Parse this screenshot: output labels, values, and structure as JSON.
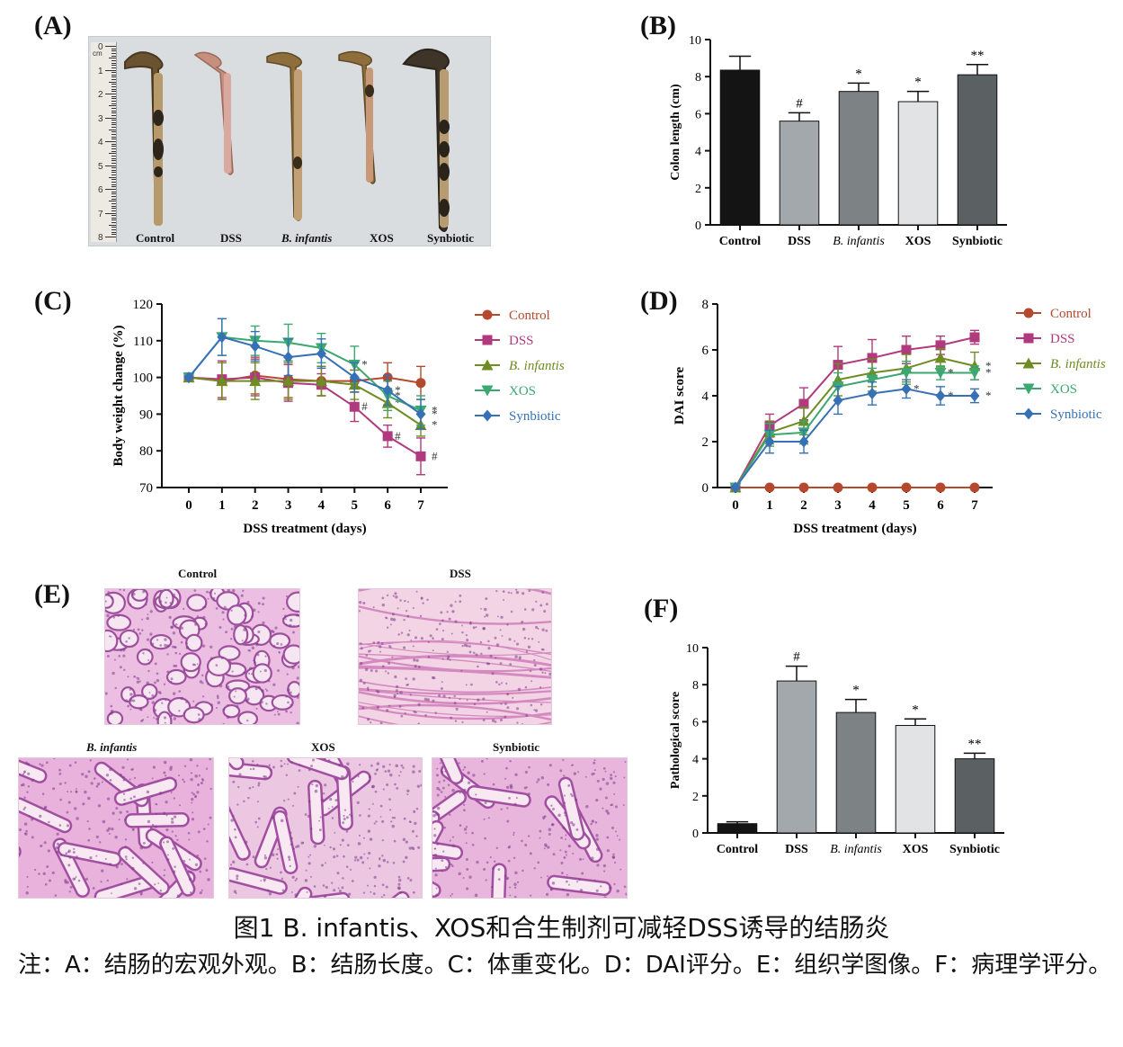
{
  "panel_letters": {
    "a": "(A)",
    "b": "(B)",
    "c": "(C)",
    "d": "(D)",
    "e": "(E)",
    "f": "(F)"
  },
  "photo": {
    "labels": [
      "Control",
      "DSS",
      "B. infantis",
      "XOS",
      "Synbiotic"
    ],
    "ruler_unit": "cm",
    "ruler_numbers": [
      "0",
      "1",
      "2",
      "3",
      "4",
      "5",
      "6",
      "7",
      "8"
    ]
  },
  "chart_data": [
    {
      "panel": "B",
      "type": "bar",
      "categories": [
        "Control",
        "DSS",
        "B. infantis",
        "XOS",
        "Synbiotic"
      ],
      "values": [
        8.35,
        5.6,
        7.2,
        6.65,
        8.1
      ],
      "errors": [
        0.75,
        0.45,
        0.45,
        0.55,
        0.55
      ],
      "annotations": [
        "",
        "#",
        "*",
        "*",
        "**"
      ],
      "bar_colors": [
        "#141414",
        "#a3a8ad",
        "#7d8285",
        "#e1e3e4",
        "#5b6163"
      ],
      "ylabel": "Colon length (cm)",
      "ylim": [
        0,
        10
      ],
      "yticks": [
        "0",
        "2",
        "4",
        "6",
        "8",
        "10"
      ]
    },
    {
      "panel": "C",
      "type": "line",
      "x": [
        0,
        1,
        2,
        3,
        4,
        5,
        6,
        7
      ],
      "xticks": [
        "0",
        "1",
        "2",
        "3",
        "4",
        "5",
        "6",
        "7"
      ],
      "xlabel": "DSS treatment  (days)",
      "ylabel": "Body weight change (%)",
      "ylim": [
        70,
        120
      ],
      "yticks": [
        "70",
        "80",
        "90",
        "100",
        "110",
        "120"
      ],
      "legend_position": "right",
      "series": [
        {
          "name": "Control",
          "color": "#b5492d",
          "marker": "circle",
          "values": [
            100,
            99,
            100.5,
            99.5,
            99,
            99,
            100,
            98.5
          ],
          "errors": [
            0,
            5,
            5,
            5,
            4,
            3,
            4,
            4.5
          ],
          "annotations": [
            "",
            "",
            "",
            "",
            "",
            "",
            "",
            ""
          ]
        },
        {
          "name": "DSS",
          "color": "#b03a7d",
          "marker": "square",
          "values": [
            100,
            99.5,
            100,
            98.5,
            98,
            92,
            84,
            78.5
          ],
          "errors": [
            0,
            5,
            5,
            5,
            3,
            4,
            3,
            5
          ],
          "annotations": [
            "",
            "",
            "",
            "",
            "",
            "#",
            "#",
            "#"
          ]
        },
        {
          "name": "B. infantis",
          "color": "#6e8c21",
          "marker": "triangle-up",
          "values": [
            100,
            99,
            99,
            99,
            99,
            98,
            93,
            87
          ],
          "errors": [
            0,
            5,
            5,
            5,
            4,
            4,
            4,
            3
          ],
          "annotations": [
            "",
            "",
            "",
            "",
            "",
            "",
            "*",
            "*"
          ]
        },
        {
          "name": "XOS",
          "color": "#3aa870",
          "marker": "triangle-down",
          "values": [
            100,
            111,
            110,
            109.5,
            108,
            103.5,
            95,
            91
          ],
          "errors": [
            0,
            5,
            4,
            5,
            4,
            5,
            4,
            4
          ],
          "annotations": [
            "",
            "",
            "",
            "",
            "",
            "*",
            "*",
            "*"
          ]
        },
        {
          "name": "Synbiotic",
          "color": "#3771b5",
          "marker": "diamond",
          "values": [
            100,
            111,
            108.5,
            105.5,
            106.5,
            100,
            96.5,
            90
          ],
          "errors": [
            0,
            5,
            4,
            5,
            4,
            4,
            4,
            4
          ],
          "annotations": [
            "",
            "",
            "",
            "",
            "",
            "",
            "*",
            "*"
          ]
        }
      ]
    },
    {
      "panel": "D",
      "type": "line",
      "x": [
        0,
        1,
        2,
        3,
        4,
        5,
        6,
        7
      ],
      "xticks": [
        "0",
        "1",
        "2",
        "3",
        "4",
        "5",
        "6",
        "7"
      ],
      "xlabel": "DSS treatment (days)",
      "ylabel": "DAI score",
      "ylim": [
        0,
        8
      ],
      "yticks": [
        "0",
        "2",
        "4",
        "6",
        "8"
      ],
      "legend_position": "right",
      "series": [
        {
          "name": "Control",
          "color": "#b5492d",
          "marker": "circle",
          "values": [
            0,
            0,
            0,
            0,
            0,
            0,
            0,
            0
          ],
          "errors": [
            0,
            0,
            0,
            0,
            0,
            0,
            0,
            0
          ],
          "annotations": [
            "",
            "",
            "",
            "",
            "",
            "",
            "",
            ""
          ]
        },
        {
          "name": "DSS",
          "color": "#b03a7d",
          "marker": "square",
          "values": [
            0,
            2.7,
            3.65,
            5.35,
            5.65,
            6.0,
            6.2,
            6.55
          ],
          "errors": [
            0,
            0.5,
            0.7,
            0.8,
            0.8,
            0.6,
            0.4,
            0.3
          ],
          "annotations": [
            "",
            "",
            "",
            "",
            "",
            "",
            "",
            ""
          ]
        },
        {
          "name": "B. infantis",
          "color": "#6e8c21",
          "marker": "triangle-up",
          "values": [
            0,
            2.4,
            2.9,
            4.7,
            5.0,
            5.2,
            5.65,
            5.3
          ],
          "errors": [
            0,
            0.5,
            0.6,
            0.7,
            0.6,
            0.6,
            0.4,
            0.6
          ],
          "annotations": [
            "",
            "",
            "",
            "",
            "",
            "",
            "",
            "*"
          ]
        },
        {
          "name": "XOS",
          "color": "#3aa870",
          "marker": "triangle-down",
          "values": [
            0,
            2.3,
            2.4,
            4.4,
            4.7,
            5.0,
            5.0,
            5.0
          ],
          "errors": [
            0,
            0.5,
            0.5,
            0.6,
            0.5,
            0.5,
            0.3,
            0.3
          ],
          "annotations": [
            "",
            "",
            "",
            "",
            "",
            "",
            "*",
            "*"
          ]
        },
        {
          "name": "Synbiotic",
          "color": "#3771b5",
          "marker": "diamond",
          "values": [
            0,
            2.0,
            2.0,
            3.8,
            4.1,
            4.3,
            4.0,
            4.0
          ],
          "errors": [
            0,
            0.5,
            0.5,
            0.6,
            0.5,
            0.4,
            0.4,
            0.3
          ],
          "annotations": [
            "",
            "",
            "",
            "",
            "",
            "*",
            "*",
            "*"
          ]
        }
      ]
    },
    {
      "panel": "F",
      "type": "bar",
      "categories": [
        "Control",
        "DSS",
        "B. infantis",
        "XOS",
        "Synbiotic"
      ],
      "values": [
        0.5,
        8.2,
        6.5,
        5.8,
        4.0
      ],
      "errors": [
        0.1,
        0.8,
        0.7,
        0.35,
        0.3
      ],
      "annotations": [
        "",
        "#",
        "*",
        "*",
        "**"
      ],
      "bar_colors": [
        "#141414",
        "#a3a8ad",
        "#7d8285",
        "#e1e3e4",
        "#5b6163"
      ],
      "ylabel": "Pathological score",
      "ylim": [
        0,
        10
      ],
      "yticks": [
        "0",
        "2",
        "4",
        "6",
        "8",
        "10"
      ]
    }
  ],
  "histology": {
    "titles": [
      "Control",
      "DSS",
      "B. infantis",
      "XOS",
      "Synbiotic"
    ]
  },
  "caption": {
    "title": "图1 B. infantis、XOS和合生制剂可减轻DSS诱导的结肠炎",
    "note": "注：A：结肠的宏观外观。B：结肠长度。C：体重变化。D：DAI评分。E：组织学图像。F：病理学评分。"
  }
}
